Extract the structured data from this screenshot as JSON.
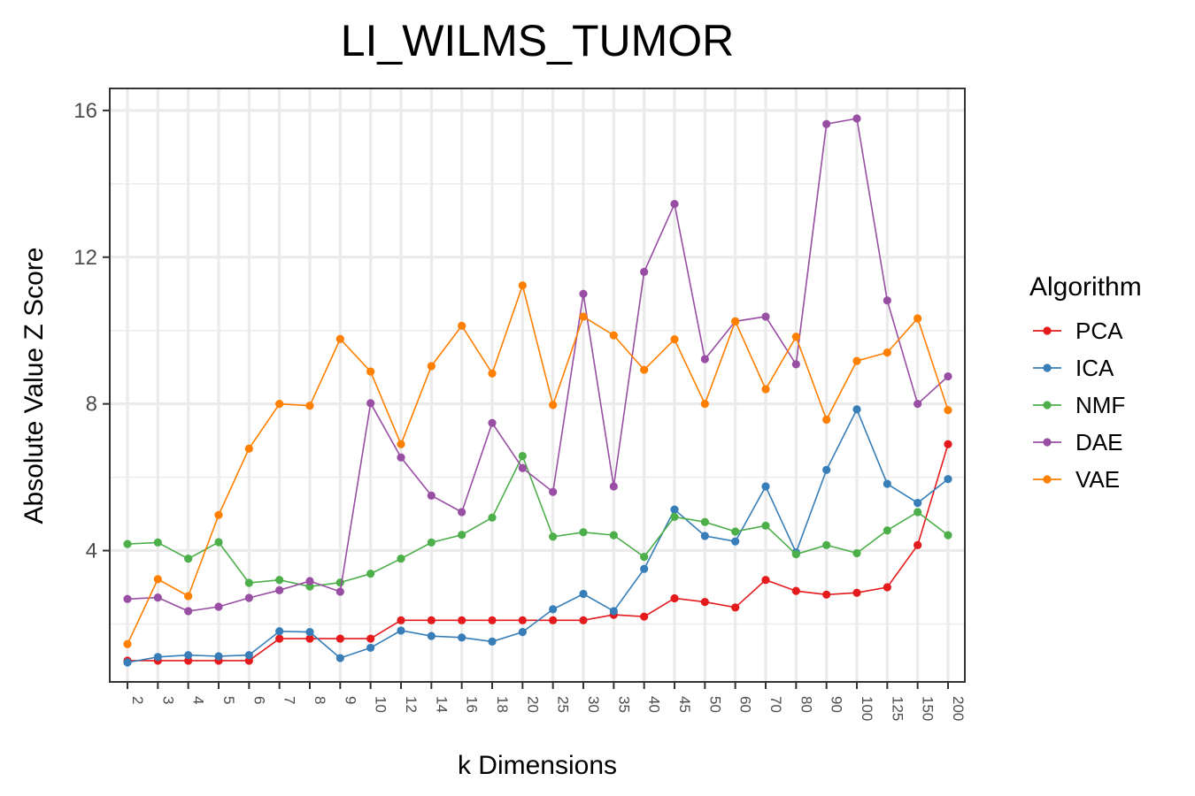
{
  "chart_data": {
    "type": "line",
    "title": "LI_WILMS_TUMOR",
    "xlabel": "k Dimensions",
    "ylabel": "Absolute Value Z Score",
    "x": [
      "2",
      "3",
      "4",
      "5",
      "6",
      "7",
      "8",
      "9",
      "10",
      "12",
      "14",
      "16",
      "18",
      "20",
      "25",
      "30",
      "35",
      "40",
      "45",
      "50",
      "60",
      "70",
      "80",
      "90",
      "100",
      "125",
      "150",
      "200"
    ],
    "yticks": [
      4,
      8,
      12,
      16
    ],
    "ylim": [
      0.42,
      16.6
    ],
    "grid": true,
    "legend": {
      "title": "Algorithm",
      "position": "right"
    },
    "series": [
      {
        "name": "PCA",
        "color": "#e41a1c",
        "values": [
          1.0,
          1.0,
          1.0,
          1.0,
          1.0,
          1.6,
          1.6,
          1.6,
          1.6,
          2.1,
          2.1,
          2.1,
          2.1,
          2.1,
          2.1,
          2.1,
          2.25,
          2.2,
          2.7,
          2.6,
          2.45,
          3.2,
          2.9,
          2.8,
          2.85,
          3.0,
          4.15,
          6.9
        ]
      },
      {
        "name": "ICA",
        "color": "#377eb8",
        "values": [
          0.95,
          1.1,
          1.15,
          1.12,
          1.15,
          1.8,
          1.78,
          1.07,
          1.35,
          1.82,
          1.67,
          1.63,
          1.52,
          1.78,
          2.4,
          2.82,
          2.35,
          3.5,
          5.12,
          4.4,
          4.25,
          5.75,
          3.95,
          6.2,
          7.85,
          5.82,
          5.3,
          5.95
        ]
      },
      {
        "name": "NMF",
        "color": "#4daf4a",
        "values": [
          4.18,
          4.22,
          3.78,
          4.23,
          3.12,
          3.2,
          3.02,
          3.13,
          3.37,
          3.78,
          4.22,
          4.43,
          4.9,
          6.58,
          4.38,
          4.5,
          4.42,
          3.83,
          4.92,
          4.78,
          4.52,
          4.68,
          3.9,
          4.15,
          3.93,
          4.55,
          5.05,
          4.42
        ]
      },
      {
        "name": "DAE",
        "color": "#984ea3",
        "values": [
          2.68,
          2.72,
          2.35,
          2.47,
          2.71,
          2.92,
          3.17,
          2.88,
          8.02,
          6.54,
          5.5,
          5.05,
          7.48,
          6.25,
          5.6,
          11.0,
          5.75,
          11.6,
          13.45,
          9.22,
          10.25,
          10.38,
          9.08,
          15.63,
          15.78,
          10.82,
          8.0,
          8.75
        ]
      },
      {
        "name": "VAE",
        "color": "#ff7f00",
        "values": [
          1.45,
          3.22,
          2.76,
          4.97,
          6.78,
          8.0,
          7.95,
          9.77,
          8.88,
          6.9,
          9.03,
          10.13,
          8.83,
          11.23,
          7.97,
          10.38,
          9.87,
          8.93,
          9.76,
          8.0,
          10.25,
          8.4,
          9.83,
          7.57,
          9.17,
          9.4,
          10.33,
          7.83
        ]
      }
    ]
  }
}
